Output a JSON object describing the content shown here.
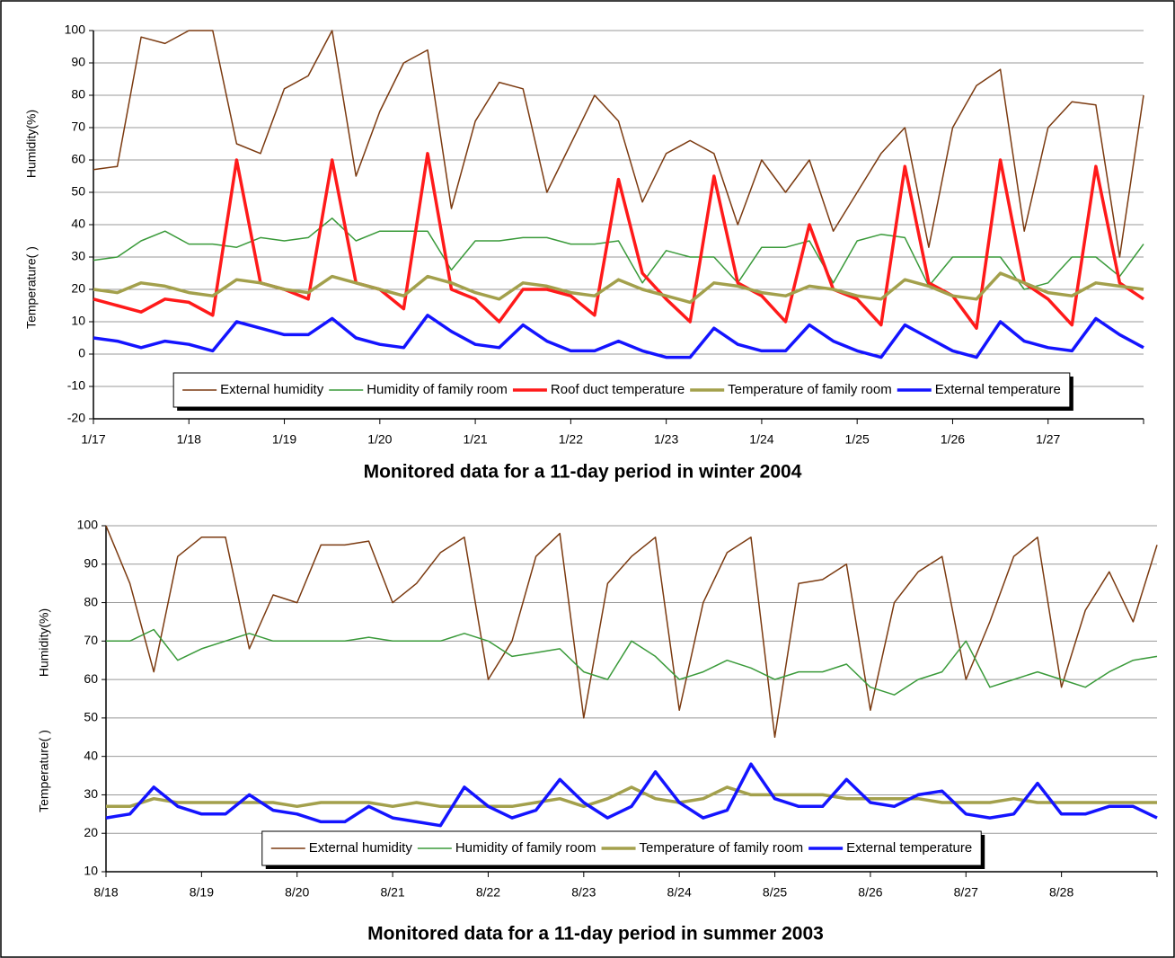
{
  "chart_data": [
    {
      "type": "line",
      "title": "Monitored data for a 11-day period in winter 2004",
      "y_labels": [
        "Humidity(%)",
        "Temperature(   )"
      ],
      "categories": [
        "1/17",
        null,
        null,
        null,
        "1/18",
        null,
        null,
        null,
        "1/19",
        null,
        null,
        null,
        "1/20",
        null,
        null,
        null,
        "1/21",
        null,
        null,
        null,
        "1/22",
        null,
        null,
        null,
        "1/23",
        null,
        null,
        null,
        "1/24",
        null,
        null,
        null,
        "1/25",
        null,
        null,
        null,
        "1/26",
        null,
        null,
        null,
        "1/27",
        null,
        null,
        null,
        null
      ],
      "ylim": [
        -20,
        100
      ],
      "yticks": [
        -20,
        -10,
        0,
        10,
        20,
        30,
        40,
        50,
        60,
        70,
        80,
        90,
        100
      ],
      "grid": true,
      "legend": "lower center",
      "series": [
        {
          "name": "External humidity",
          "color": "#7b3a10",
          "values": [
            57,
            58,
            98,
            96,
            100,
            100,
            65,
            62,
            82,
            86,
            100,
            55,
            75,
            90,
            94,
            45,
            72,
            84,
            82,
            50,
            65,
            80,
            72,
            47,
            62,
            66,
            62,
            40,
            60,
            50,
            60,
            38,
            50,
            62,
            70,
            33,
            70,
            83,
            88,
            38,
            70,
            78,
            77,
            30,
            80
          ]
        },
        {
          "name": "Humidity of family room",
          "color": "#3a9a3a",
          "values": [
            29,
            30,
            35,
            38,
            34,
            34,
            33,
            36,
            35,
            36,
            42,
            35,
            38,
            38,
            38,
            26,
            35,
            35,
            36,
            36,
            34,
            34,
            35,
            22,
            32,
            30,
            30,
            22,
            33,
            33,
            35,
            22,
            35,
            37,
            36,
            21,
            30,
            30,
            30,
            20,
            22,
            30,
            30,
            24,
            34
          ]
        },
        {
          "name": "Roof duct temperature",
          "color": "#ff1a1a",
          "values": [
            17,
            15,
            13,
            17,
            16,
            12,
            60,
            22,
            20,
            17,
            60,
            22,
            20,
            14,
            62,
            20,
            17,
            10,
            20,
            20,
            18,
            12,
            54,
            25,
            17,
            10,
            55,
            22,
            18,
            10,
            40,
            20,
            17,
            9,
            58,
            22,
            18,
            8,
            60,
            22,
            17,
            9,
            58,
            22,
            17
          ]
        },
        {
          "name": "Temperature of family room",
          "color": "#a3a04c",
          "values": [
            20,
            19,
            22,
            21,
            19,
            18,
            23,
            22,
            20,
            19,
            24,
            22,
            20,
            18,
            24,
            22,
            19,
            17,
            22,
            21,
            19,
            18,
            23,
            20,
            18,
            16,
            22,
            21,
            19,
            18,
            21,
            20,
            18,
            17,
            23,
            21,
            18,
            17,
            25,
            22,
            19,
            18,
            22,
            21,
            20
          ]
        },
        {
          "name": "External temperature",
          "color": "#1414ff",
          "values": [
            5,
            4,
            2,
            4,
            3,
            1,
            10,
            8,
            6,
            6,
            11,
            5,
            3,
            2,
            12,
            7,
            3,
            2,
            9,
            4,
            1,
            1,
            4,
            1,
            -1,
            -1,
            8,
            3,
            1,
            1,
            9,
            4,
            1,
            -1,
            9,
            5,
            1,
            -1,
            10,
            4,
            2,
            1,
            11,
            6,
            2
          ]
        }
      ]
    },
    {
      "type": "line",
      "title": "Monitored data for a 11-day period in summer 2003",
      "y_labels": [
        "Humidity(%)",
        "Temperature(   )"
      ],
      "categories": [
        "8/18",
        null,
        null,
        null,
        "8/19",
        null,
        null,
        null,
        "8/20",
        null,
        null,
        null,
        "8/21",
        null,
        null,
        null,
        "8/22",
        null,
        null,
        null,
        "8/23",
        null,
        null,
        null,
        "8/24",
        null,
        null,
        null,
        "8/25",
        null,
        null,
        null,
        "8/26",
        null,
        null,
        null,
        "8/27",
        null,
        null,
        null,
        "8/28",
        null,
        null,
        null,
        null
      ],
      "ylim": [
        10,
        100
      ],
      "yticks": [
        10,
        20,
        30,
        40,
        50,
        60,
        70,
        80,
        90,
        100
      ],
      "grid": true,
      "legend": "lower center",
      "series": [
        {
          "name": "External humidity",
          "color": "#7b3a10",
          "values": [
            100,
            85,
            62,
            92,
            97,
            97,
            68,
            82,
            80,
            95,
            95,
            96,
            80,
            85,
            93,
            97,
            60,
            70,
            92,
            98,
            50,
            85,
            92,
            97,
            52,
            80,
            93,
            97,
            45,
            85,
            86,
            90,
            52,
            80,
            88,
            92,
            60,
            75,
            92,
            97,
            58,
            78,
            88,
            75,
            95
          ]
        },
        {
          "name": "Humidity of family room",
          "color": "#3a9a3a",
          "values": [
            70,
            70,
            73,
            65,
            68,
            70,
            72,
            70,
            70,
            70,
            70,
            71,
            70,
            70,
            70,
            72,
            70,
            66,
            67,
            68,
            62,
            60,
            70,
            66,
            60,
            62,
            65,
            63,
            60,
            62,
            62,
            64,
            58,
            56,
            60,
            62,
            70,
            58,
            60,
            62,
            60,
            58,
            62,
            65,
            66
          ]
        },
        {
          "name": "Temperature of family room",
          "color": "#a3a04c",
          "values": [
            27,
            27,
            29,
            28,
            28,
            28,
            28,
            28,
            27,
            28,
            28,
            28,
            27,
            28,
            27,
            27,
            27,
            27,
            28,
            29,
            27,
            29,
            32,
            29,
            28,
            29,
            32,
            30,
            30,
            30,
            30,
            29,
            29,
            29,
            29,
            28,
            28,
            28,
            29,
            28,
            28,
            28,
            28,
            28,
            28
          ]
        },
        {
          "name": "External temperature",
          "color": "#1414ff",
          "values": [
            24,
            25,
            32,
            27,
            25,
            25,
            30,
            26,
            25,
            23,
            23,
            27,
            24,
            23,
            22,
            32,
            27,
            24,
            26,
            34,
            28,
            24,
            27,
            36,
            28,
            24,
            26,
            38,
            29,
            27,
            27,
            34,
            28,
            27,
            30,
            31,
            25,
            24,
            25,
            33,
            25,
            25,
            27,
            27,
            24
          ]
        }
      ]
    }
  ]
}
